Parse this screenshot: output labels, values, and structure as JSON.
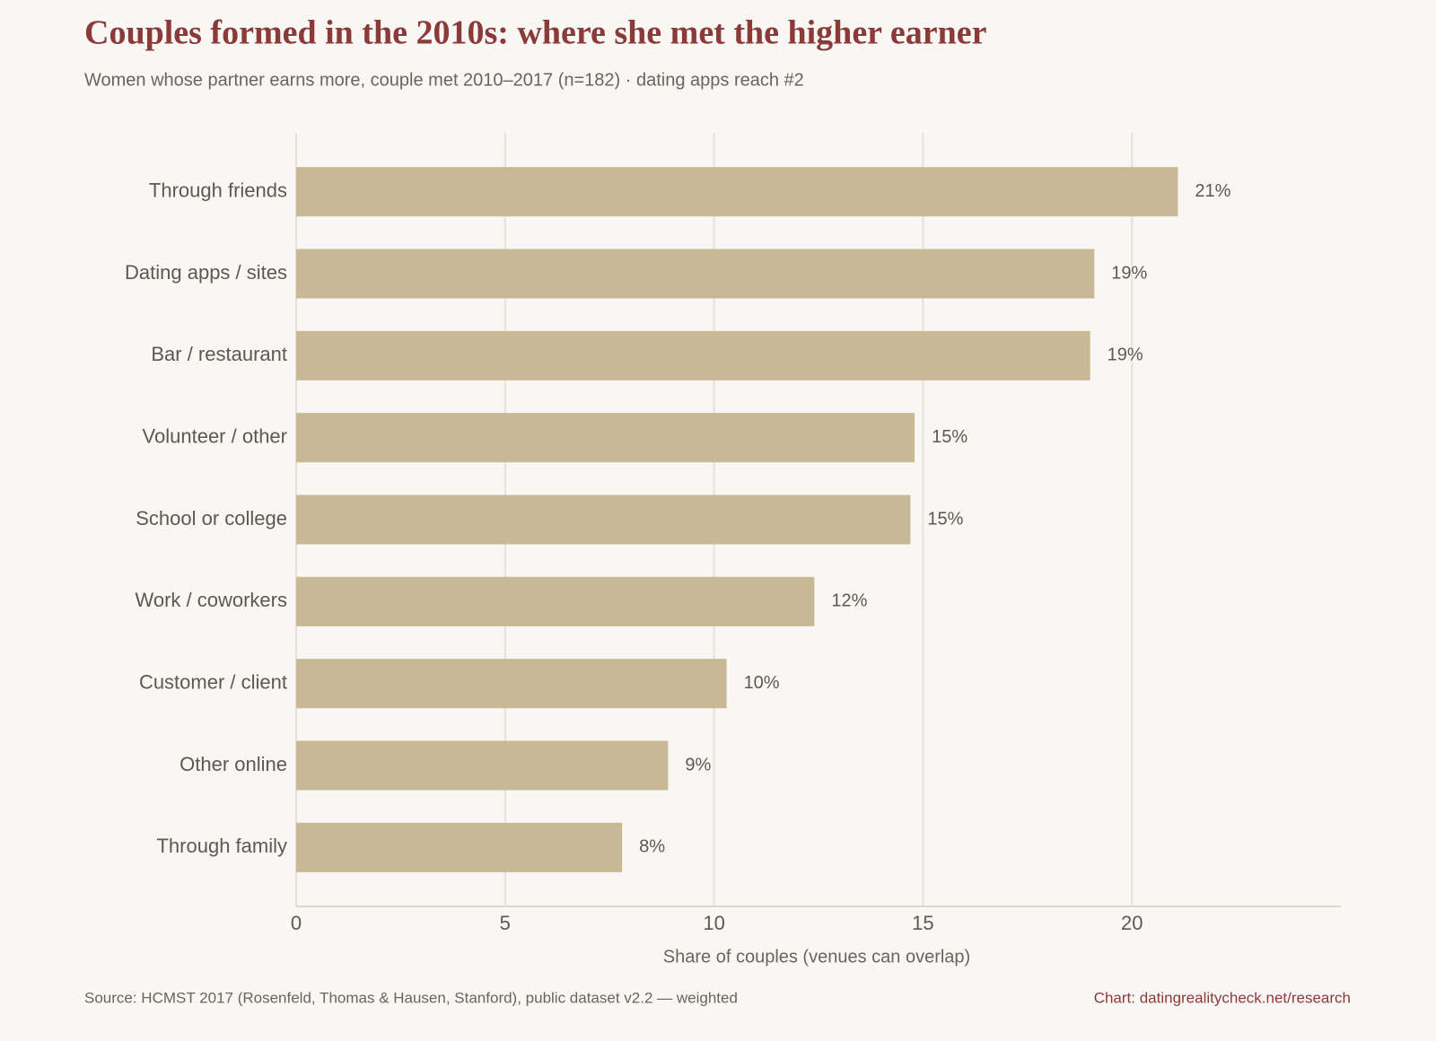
{
  "chart_data": {
    "type": "barh",
    "title": "Couples formed in the 2010s: where she met the higher earner",
    "subtitle": "Women whose partner earns more, couple met 2010–2017 (n=182) · dating apps reach #2",
    "x_label": "Share of couples (venues can overlap)",
    "source": "Source: HCMST 2017 (Rosenfeld, Thomas & Hausen, Stanford), public dataset v2.2 — weighted",
    "credit": "Chart: datingrealitycheck.net/research",
    "categories": [
      "Through friends",
      "Dating apps / sites",
      "Bar / restaurant",
      "Volunteer / other",
      "School or college",
      "Work / coworkers",
      "Customer / client",
      "Other online",
      "Through family"
    ],
    "values": [
      21.1,
      19.1,
      19.0,
      14.8,
      14.7,
      12.4,
      10.3,
      8.9,
      7.8
    ],
    "value_labels": [
      "21%",
      "19%",
      "19%",
      "15%",
      "15%",
      "12%",
      "10%",
      "9%",
      "8%"
    ],
    "color": "#c9b896",
    "xlim": [
      0,
      25
    ],
    "xticks": [
      0,
      5,
      10,
      15,
      20
    ],
    "grid": true
  }
}
